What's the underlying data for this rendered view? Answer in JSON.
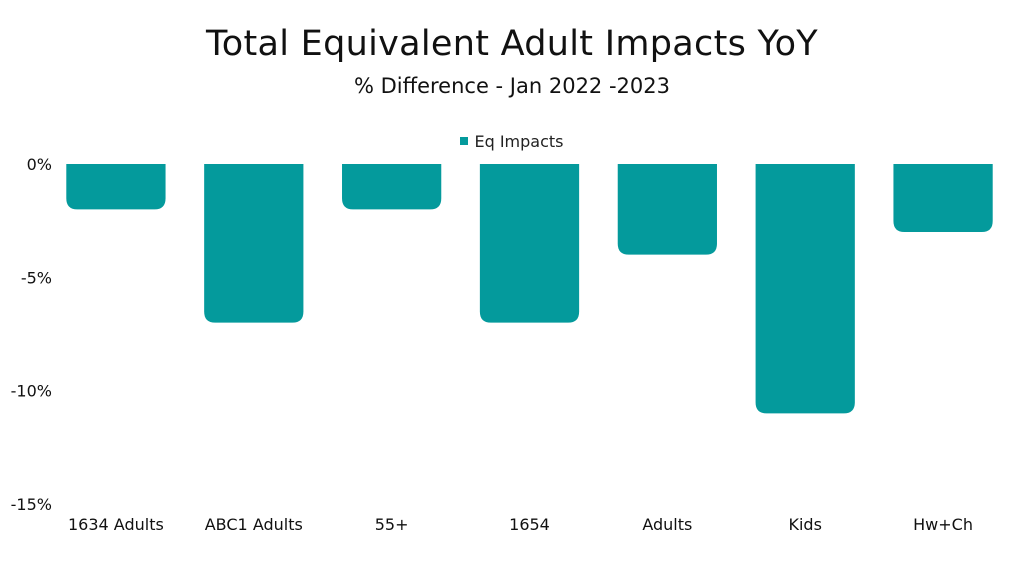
{
  "chart_data": {
    "type": "bar",
    "title": "Total Equivalent Adult Impacts YoY",
    "subtitle": "% Difference - Jan 2022 -2023",
    "xlabel": "",
    "ylabel": "",
    "categories": [
      "1634 Adults",
      "ABC1 Adults",
      "55+",
      "1654",
      "Adults",
      "Kids",
      "Hw+Ch"
    ],
    "series": [
      {
        "name": "Eq Impacts",
        "values": [
          -2,
          -7,
          -2,
          -7,
          -4,
          -11,
          -3
        ],
        "color": "#049a9c"
      }
    ],
    "ylim": [
      -15,
      0
    ],
    "yticks": [
      0,
      -5,
      -10,
      -15
    ],
    "ytick_labels": [
      "0%",
      "-5%",
      "-10%",
      "-15%"
    ],
    "grid": false,
    "legend_position": "top-center"
  }
}
